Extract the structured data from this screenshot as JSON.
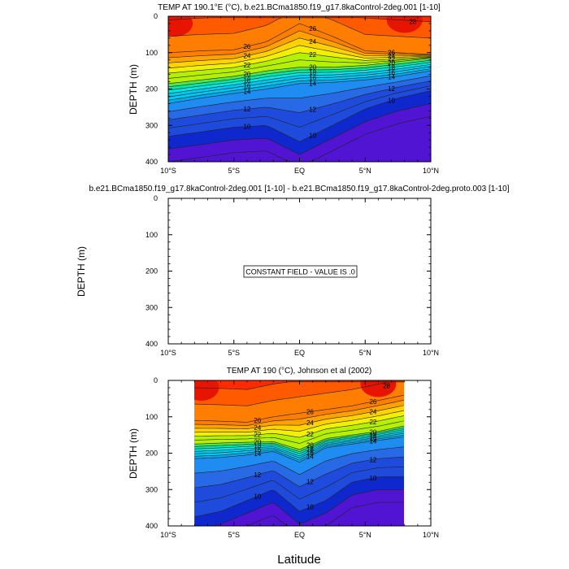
{
  "chart_data": [
    {
      "type": "contour",
      "title": "TEMP AT 190.1°E (°C), b.e21.BCma1850.f19_g17.8kaControl-2deg.001 [1-10]",
      "xlabel": "",
      "ylabel": "DEPTH (m)",
      "xlim": [
        -10,
        10
      ],
      "ylim": [
        400,
        0
      ],
      "x_tick_labels": [
        "10°S",
        "5°S",
        "EQ",
        "5°N",
        "10°N"
      ],
      "x_tick_values": [
        -10,
        -5,
        0,
        5,
        10
      ],
      "y_tick_labels": [
        "0",
        "100",
        "200",
        "300",
        "400"
      ],
      "y_tick_values": [
        0,
        100,
        200,
        300,
        400
      ],
      "contour_levels": [
        8,
        10,
        12,
        14,
        16,
        18,
        20,
        22,
        24,
        26,
        28
      ],
      "contour_labels": [
        "28",
        "26",
        "24",
        "22",
        "20",
        "18",
        "16",
        "14",
        "12",
        "10",
        "28",
        "26",
        "24",
        "22",
        "20",
        "18",
        "16",
        "14",
        "12",
        "10",
        "26",
        "24",
        "22",
        "20",
        "18",
        "16",
        "14",
        "12",
        "10",
        "26",
        "28"
      ],
      "depth_of_isotherm": {
        "latitudes": [
          -10,
          -7.5,
          -5,
          -2.5,
          0,
          2.5,
          5,
          7.5,
          10
        ],
        "iso_26": [
          100,
          95,
          92,
          70,
          20,
          55,
          95,
          100,
          105
        ],
        "iso_20": [
          185,
          175,
          165,
          150,
          140,
          140,
          135,
          125,
          115
        ],
        "iso_14": [
          240,
          225,
          212,
          200,
          185,
          182,
          175,
          165,
          150
        ],
        "iso_10": [
          330,
          318,
          305,
          300,
          345,
          300,
          255,
          225,
          205
        ]
      },
      "x_range": [
        -10,
        10
      ]
    },
    {
      "type": "contour",
      "title": "b.e21.BCma1850.f19_g17.8kaControl-2deg.001 [1-10] - b.e21.BCma1850.f19_g17.8kaControl-2deg.proto.003 [1-10]",
      "xlabel": "",
      "ylabel": "DEPTH (m)",
      "xlim": [
        -10,
        10
      ],
      "ylim": [
        400,
        0
      ],
      "x_tick_labels": [
        "10°S",
        "5°S",
        "EQ",
        "5°N",
        "10°N"
      ],
      "y_tick_labels": [
        "0",
        "100",
        "200",
        "300",
        "400"
      ],
      "annotation": "CONSTANT FIELD - VALUE IS .0",
      "constant_value": 0
    },
    {
      "type": "contour",
      "title": "TEMP AT 190 (°C), Johnson et al (2002)",
      "xlabel": "Latitude",
      "ylabel": "DEPTH (m)",
      "xlim": [
        -10,
        10
      ],
      "ylim": [
        400,
        0
      ],
      "x_tick_labels": [
        "10°S",
        "5°S",
        "EQ",
        "5°N",
        "10°N"
      ],
      "x_tick_values": [
        -10,
        -5,
        0,
        5,
        10
      ],
      "y_tick_labels": [
        "0",
        "100",
        "200",
        "300",
        "400"
      ],
      "y_tick_values": [
        0,
        100,
        200,
        300,
        400
      ],
      "data_lat_range": [
        -8,
        8
      ],
      "contour_levels": [
        8,
        10,
        12,
        14,
        16,
        18,
        20,
        22,
        24,
        26,
        28
      ],
      "contour_labels": [
        "26",
        "24",
        "22",
        "20",
        "18",
        "16",
        "14",
        "12",
        "26",
        "24",
        "22",
        "20",
        "18",
        "16",
        "14",
        "12",
        "10",
        "10",
        "10",
        "28"
      ],
      "depth_of_isotherm": {
        "latitudes": [
          -8,
          -6,
          -4,
          -2,
          0,
          2,
          4,
          6,
          8
        ],
        "iso_26": [
          110,
          112,
          115,
          100,
          90,
          80,
          70,
          55,
          40
        ],
        "iso_20": [
          175,
          172,
          170,
          168,
          190,
          160,
          150,
          140,
          125
        ],
        "iso_14": [
          215,
          212,
          205,
          195,
          225,
          185,
          175,
          165,
          155
        ],
        "iso_10": [
          375,
          360,
          330,
          300,
          360,
          330,
          280,
          265,
          265
        ]
      },
      "x_range": [
        -8,
        8
      ]
    }
  ]
}
